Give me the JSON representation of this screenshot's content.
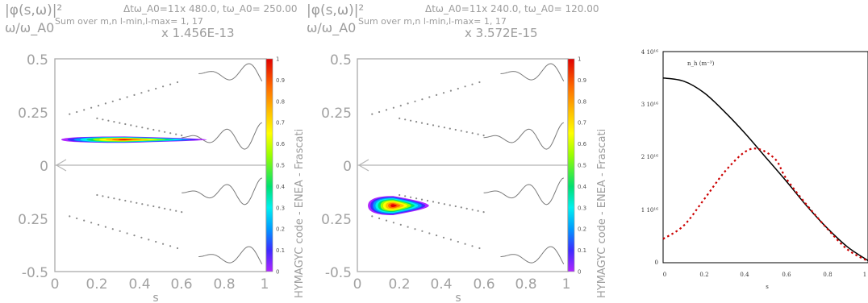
{
  "chart_data": [
    {
      "type": "heatmap",
      "ylabel_top": "|φ(s,ω)|²",
      "ylabel_bottom": "ω/ω_A0",
      "param_text": "Δtω_A0=11x 480.0, tω_A0= 250.00",
      "sum_text": "Sum over m,n l-min,l-max=  1, 17",
      "scale_text": "x 1.456E-13",
      "xlabel": "s",
      "side_text": "HYMAGYC code - ENEA - Frascati",
      "xlim": [
        0,
        1
      ],
      "ylim": [
        -0.5,
        0.5
      ],
      "xticks": [
        "0",
        "0.2",
        "0.4",
        "0.6",
        "0.8",
        "1"
      ],
      "yticks": [
        "0.5",
        "0.25",
        "0",
        "0.25",
        "-0.5"
      ],
      "colorbar": {
        "range": [
          0,
          1
        ],
        "ticks": [
          "0",
          "0.1",
          "0.2",
          "0.3",
          "0.4",
          "0.5",
          "0.6",
          "0.7",
          "0.8",
          "0.9",
          "1"
        ],
        "colors": [
          "#b026ff",
          "#3d2bff",
          "#0099ff",
          "#00f0f0",
          "#00e070",
          "#9cff00",
          "#ffff00",
          "#ffc000",
          "#ff6a00",
          "#e00000"
        ]
      },
      "spot": {
        "s_center": 0.33,
        "omega_center": 0.12,
        "s_extent": [
          0.03,
          0.72
        ],
        "omega_halfwidth": 0.015,
        "peak": 1.0
      },
      "continuum_dots": [
        {
          "s_range": [
            0.07,
            0.58
          ],
          "omega": [
            0.24,
            0.39
          ]
        },
        {
          "s_range": [
            0.07,
            0.58
          ],
          "omega": [
            -0.24,
            -0.39
          ]
        },
        {
          "s_range": [
            0.2,
            0.6
          ],
          "omega": [
            0.22,
            0.14
          ]
        },
        {
          "s_range": [
            0.2,
            0.6
          ],
          "omega": [
            -0.14,
            -0.22
          ]
        }
      ]
    },
    {
      "type": "heatmap",
      "ylabel_top": "|φ(s,ω)|²",
      "ylabel_bottom": "ω/ω_A0",
      "param_text": "Δtω_A0=11x 240.0, tω_A0= 120.00",
      "sum_text": "Sum over m,n l-min,l-max=  1, 17",
      "scale_text": "x 3.572E-15",
      "xlabel": "s",
      "side_text": "HYMAGYC code - ENEA - Frascati",
      "xlim": [
        0,
        1
      ],
      "ylim": [
        -0.5,
        0.5
      ],
      "xticks": [
        "0",
        "0.2",
        "0.4",
        "0.6",
        "0.8",
        "1"
      ],
      "yticks": [
        "0.5",
        "0.25",
        "0",
        "0.25",
        "-0.5"
      ],
      "colorbar": {
        "range": [
          0,
          1
        ],
        "ticks": [
          "0",
          "0.1",
          "0.2",
          "0.3",
          "0.4",
          "0.5",
          "0.6",
          "0.7",
          "0.8",
          "0.9",
          "1"
        ],
        "colors": [
          "#b026ff",
          "#3d2bff",
          "#0099ff",
          "#00f0f0",
          "#00e070",
          "#9cff00",
          "#ffff00",
          "#ffc000",
          "#ff6a00",
          "#e00000"
        ]
      },
      "spot": {
        "s_center": 0.17,
        "omega_center": -0.19,
        "s_extent": [
          0.05,
          0.34
        ],
        "omega_halfwidth": 0.045,
        "peak": 1.0
      },
      "continuum_dots": [
        {
          "s_range": [
            0.07,
            0.58
          ],
          "omega": [
            0.24,
            0.39
          ]
        },
        {
          "s_range": [
            0.07,
            0.58
          ],
          "omega": [
            -0.24,
            -0.39
          ]
        },
        {
          "s_range": [
            0.2,
            0.6
          ],
          "omega": [
            0.22,
            0.14
          ]
        },
        {
          "s_range": [
            0.2,
            0.6
          ],
          "omega": [
            -0.14,
            -0.22
          ]
        }
      ]
    },
    {
      "type": "line",
      "ylabel": "n_h (m⁻³)",
      "xlabel": "s",
      "xlim": [
        0,
        1
      ],
      "ylim": [
        0,
        4e+16
      ],
      "xticks": [
        "0",
        "0.2",
        "0.4",
        "0.6",
        "0.8",
        "1"
      ],
      "yticks": [
        "0",
        "1 10¹⁶",
        "2 10¹⁶",
        "3 10¹⁶",
        "4 10¹⁶"
      ],
      "series": [
        {
          "style": "solid",
          "color": "#000000",
          "x": [
            0,
            0.1,
            0.2,
            0.3,
            0.4,
            0.5,
            0.6,
            0.7,
            0.8,
            0.9,
            1.0
          ],
          "y": [
            3.5e+16,
            3.44e+16,
            3.22e+16,
            2.86e+16,
            2.45e+16,
            2e+16,
            1.55e+16,
            1.08e+16,
            6600000000000000.0,
            3000000000000000.0,
            400000000000000.0
          ]
        },
        {
          "style": "dashed",
          "color": "#cc0000",
          "x": [
            0,
            0.1,
            0.2,
            0.3,
            0.4,
            0.47,
            0.55,
            0.6,
            0.7,
            0.8,
            0.9,
            1.0
          ],
          "y": [
            4500000000000000.0,
            7000000000000000.0,
            1.2e+16,
            1.72e+16,
            2.1e+16,
            2.15e+16,
            1.95e+16,
            1.6e+16,
            1.1e+16,
            6500000000000000.0,
            2500000000000000.0,
            300000000000000.0
          ]
        }
      ]
    }
  ]
}
